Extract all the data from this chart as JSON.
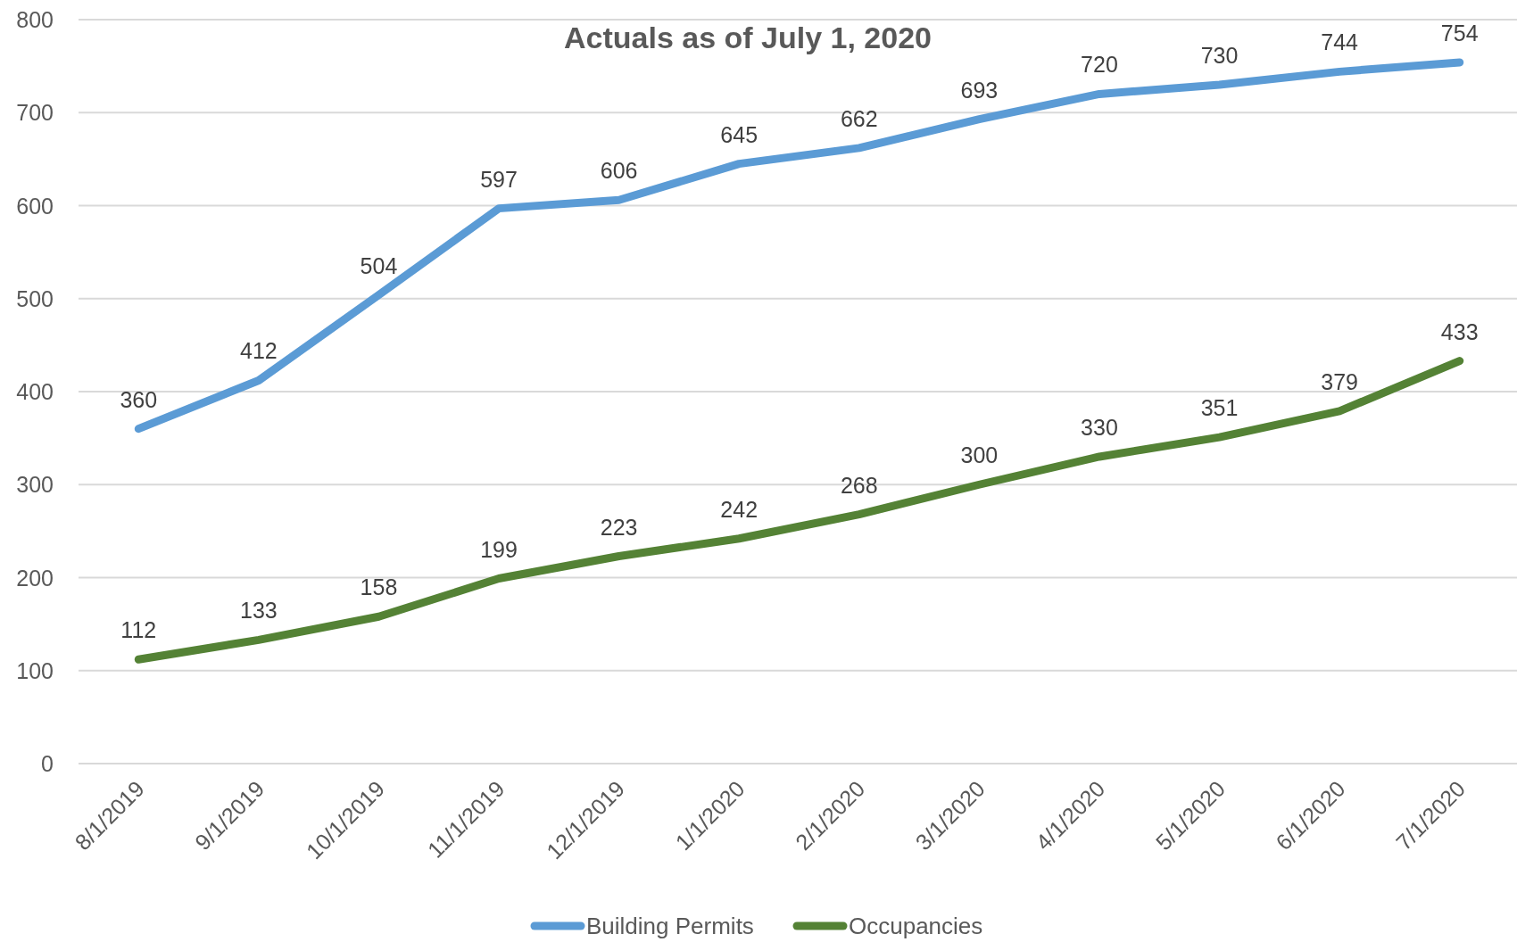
{
  "chart_data": {
    "type": "line",
    "title": "Actuals as of July 1, 2020",
    "categories": [
      "8/1/2019",
      "9/1/2019",
      "10/1/2019",
      "11/1/2019",
      "12/1/2019",
      "1/1/2020",
      "2/1/2020",
      "3/1/2020",
      "4/1/2020",
      "5/1/2020",
      "6/1/2020",
      "7/1/2020"
    ],
    "series": [
      {
        "name": "Building Permits",
        "color": "#5b9bd5",
        "values": [
          360,
          412,
          504,
          597,
          606,
          645,
          662,
          693,
          720,
          730,
          744,
          754
        ]
      },
      {
        "name": "Occupancies",
        "color": "#548235",
        "values": [
          112,
          133,
          158,
          199,
          223,
          242,
          268,
          300,
          330,
          351,
          379,
          433
        ]
      }
    ],
    "ylim": [
      0,
      800
    ],
    "yticks": [
      0,
      100,
      200,
      300,
      400,
      500,
      600,
      700,
      800
    ],
    "grid": "y",
    "legend": "bottom",
    "data_labels": true,
    "marker": "none",
    "line_style": "solid"
  }
}
